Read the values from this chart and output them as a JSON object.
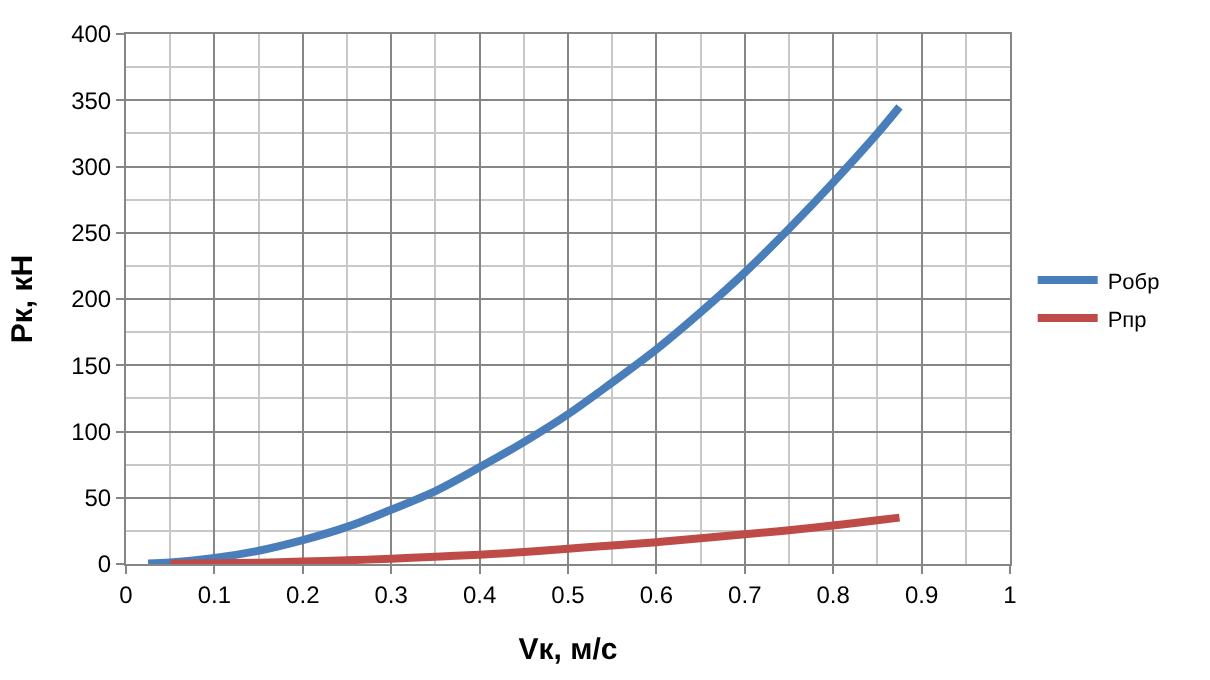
{
  "chart_data": {
    "type": "line",
    "xlabel": "Vк, м/с",
    "ylabel": "Pк, кН",
    "x": [
      0.025,
      0.05,
      0.1,
      0.15,
      0.2,
      0.25,
      0.3,
      0.35,
      0.4,
      0.45,
      0.5,
      0.55,
      0.6,
      0.65,
      0.7,
      0.75,
      0.8,
      0.85,
      0.875
    ],
    "series": [
      {
        "name": "Pобр",
        "color": "#4a7ebb",
        "values": [
          0.3,
          1.1,
          4.5,
          10,
          18,
          28,
          41,
          55,
          73,
          92,
          113,
          137,
          162,
          190,
          220,
          253,
          288,
          325,
          345
        ]
      },
      {
        "name": "Pпр",
        "color": "#be4b48",
        "values": [
          null,
          0.1,
          0.5,
          1,
          1.8,
          2.8,
          4,
          5.5,
          7,
          9,
          11.5,
          14,
          16.5,
          19.5,
          22.5,
          25.5,
          29,
          33,
          35
        ]
      }
    ],
    "xlim": [
      0,
      1
    ],
    "xticks": [
      0,
      0.1,
      0.2,
      0.3,
      0.4,
      0.5,
      0.6,
      0.7,
      0.8,
      0.9,
      1
    ],
    "ylim": [
      0,
      400
    ],
    "yticks": [
      0,
      50,
      100,
      150,
      200,
      250,
      300,
      350,
      400
    ],
    "grid": true,
    "legend": "right",
    "marker": "none",
    "line_style": "solid"
  }
}
